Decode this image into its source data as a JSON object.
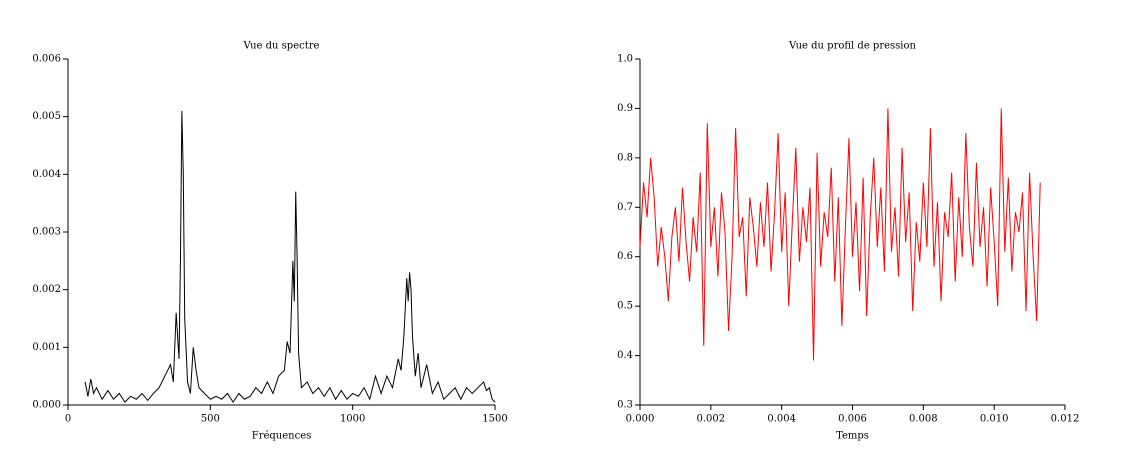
{
  "chart_data": [
    {
      "type": "line",
      "title": "Vue du spectre",
      "xlabel": "Fréquences",
      "color": "#000000",
      "x": [
        60,
        70,
        80,
        90,
        100,
        120,
        140,
        160,
        180,
        200,
        220,
        240,
        260,
        280,
        300,
        320,
        340,
        360,
        370,
        380,
        390,
        395,
        400,
        405,
        410,
        420,
        430,
        440,
        450,
        460,
        480,
        500,
        520,
        540,
        560,
        580,
        600,
        620,
        640,
        660,
        680,
        700,
        720,
        740,
        760,
        770,
        780,
        790,
        795,
        800,
        805,
        810,
        820,
        840,
        860,
        880,
        900,
        920,
        940,
        960,
        980,
        1000,
        1020,
        1040,
        1060,
        1080,
        1100,
        1120,
        1140,
        1160,
        1170,
        1180,
        1190,
        1195,
        1200,
        1205,
        1210,
        1220,
        1230,
        1240,
        1260,
        1280,
        1300,
        1320,
        1340,
        1360,
        1380,
        1400,
        1420,
        1440,
        1460,
        1470,
        1480,
        1490,
        1500
      ],
      "values": [
        0.0004,
        0.00015,
        0.00045,
        0.0002,
        0.0003,
        0.0001,
        0.00025,
        0.0001,
        0.0002,
        5e-05,
        0.00015,
        0.0001,
        0.0002,
        8e-05,
        0.0002,
        0.0003,
        0.0005,
        0.0007,
        0.0004,
        0.0016,
        0.0008,
        0.0025,
        0.0051,
        0.004,
        0.0015,
        0.0004,
        0.0002,
        0.001,
        0.0006,
        0.0003,
        0.0002,
        0.0001,
        0.00015,
        0.0001,
        0.0002,
        5e-05,
        0.0002,
        0.0001,
        0.00015,
        0.0003,
        0.0002,
        0.0004,
        0.0002,
        0.0005,
        0.0006,
        0.0011,
        0.0009,
        0.0025,
        0.0018,
        0.0037,
        0.0025,
        0.0009,
        0.0003,
        0.0004,
        0.0002,
        0.0003,
        0.00015,
        0.0003,
        0.0001,
        0.00025,
        0.0001,
        0.0002,
        0.00015,
        0.0003,
        0.0001,
        0.0005,
        0.0002,
        0.0005,
        0.0003,
        0.0008,
        0.0006,
        0.0012,
        0.0022,
        0.0018,
        0.0023,
        0.002,
        0.0012,
        0.0005,
        0.0009,
        0.0003,
        0.0007,
        0.0002,
        0.0004,
        0.0001,
        0.0002,
        0.0003,
        0.0001,
        0.0003,
        0.0002,
        0.0003,
        0.0004,
        0.00025,
        0.0003,
        0.0001,
        5e-05
      ],
      "xlim": [
        0,
        1500
      ],
      "xticks": [
        0,
        500,
        1000,
        1500
      ],
      "ylim": [
        0,
        0.006
      ],
      "yticks": [
        {
          "value": 0,
          "label": "0.000"
        },
        {
          "value": 0.001,
          "label": "0.001"
        },
        {
          "value": 0.002,
          "label": "0.002"
        },
        {
          "value": 0.003,
          "label": "0.003"
        },
        {
          "value": 0.004,
          "label": "0.004"
        },
        {
          "value": 0.005,
          "label": "0.005"
        },
        {
          "value": 0.006,
          "label": "0.006"
        }
      ]
    },
    {
      "type": "line",
      "title": "Vue du profil de pression",
      "xlabel": "Temps",
      "color": "#ff0000",
      "x": [
        0.0,
        0.0001,
        0.0002,
        0.0003,
        0.0004,
        0.0005,
        0.0006,
        0.0007,
        0.0008,
        0.0009,
        0.001,
        0.0011,
        0.0012,
        0.0013,
        0.0014,
        0.0015,
        0.0016,
        0.0017,
        0.0018,
        0.0019,
        0.002,
        0.0021,
        0.0022,
        0.0023,
        0.0024,
        0.0025,
        0.0026,
        0.0027,
        0.0028,
        0.0029,
        0.003,
        0.0031,
        0.0032,
        0.0033,
        0.0034,
        0.0035,
        0.0036,
        0.0037,
        0.0038,
        0.0039,
        0.004,
        0.0041,
        0.0042,
        0.0043,
        0.0044,
        0.0045,
        0.0046,
        0.0047,
        0.0048,
        0.0049,
        0.005,
        0.0051,
        0.0052,
        0.0053,
        0.0054,
        0.0055,
        0.0056,
        0.0057,
        0.0058,
        0.0059,
        0.006,
        0.0061,
        0.0062,
        0.0063,
        0.0064,
        0.0065,
        0.0066,
        0.0067,
        0.0068,
        0.0069,
        0.007,
        0.0071,
        0.0072,
        0.0073,
        0.0074,
        0.0075,
        0.0076,
        0.0077,
        0.0078,
        0.0079,
        0.008,
        0.0081,
        0.0082,
        0.0083,
        0.0084,
        0.0085,
        0.0086,
        0.0087,
        0.0088,
        0.0089,
        0.009,
        0.0091,
        0.0092,
        0.0093,
        0.0094,
        0.0095,
        0.0096,
        0.0097,
        0.0098,
        0.0099,
        0.01,
        0.0101,
        0.0102,
        0.0103,
        0.0104,
        0.0105,
        0.0106,
        0.0107,
        0.0108,
        0.0109,
        0.011,
        0.0111,
        0.0112,
        0.0113
      ],
      "values": [
        0.62,
        0.75,
        0.68,
        0.8,
        0.72,
        0.58,
        0.66,
        0.6,
        0.51,
        0.64,
        0.7,
        0.59,
        0.74,
        0.63,
        0.55,
        0.68,
        0.61,
        0.77,
        0.42,
        0.87,
        0.62,
        0.7,
        0.56,
        0.73,
        0.65,
        0.45,
        0.6,
        0.86,
        0.64,
        0.68,
        0.52,
        0.72,
        0.66,
        0.58,
        0.71,
        0.62,
        0.75,
        0.57,
        0.69,
        0.85,
        0.61,
        0.73,
        0.5,
        0.67,
        0.82,
        0.59,
        0.7,
        0.63,
        0.74,
        0.39,
        0.81,
        0.58,
        0.69,
        0.64,
        0.78,
        0.55,
        0.72,
        0.46,
        0.66,
        0.84,
        0.6,
        0.71,
        0.53,
        0.76,
        0.48,
        0.68,
        0.8,
        0.62,
        0.74,
        0.57,
        0.9,
        0.61,
        0.7,
        0.56,
        0.82,
        0.63,
        0.73,
        0.49,
        0.67,
        0.59,
        0.75,
        0.62,
        0.86,
        0.58,
        0.71,
        0.51,
        0.69,
        0.64,
        0.77,
        0.55,
        0.72,
        0.6,
        0.85,
        0.66,
        0.58,
        0.79,
        0.62,
        0.7,
        0.54,
        0.74,
        0.63,
        0.5,
        0.9,
        0.61,
        0.76,
        0.57,
        0.69,
        0.65,
        0.73,
        0.49,
        0.77,
        0.6,
        0.47,
        0.75
      ],
      "xlim": [
        0,
        0.012
      ],
      "xticks": [
        {
          "value": 0,
          "label": "0.000"
        },
        {
          "value": 0.002,
          "label": "0.002"
        },
        {
          "value": 0.004,
          "label": "0.004"
        },
        {
          "value": 0.006,
          "label": "0.006"
        },
        {
          "value": 0.008,
          "label": "0.008"
        },
        {
          "value": 0.01,
          "label": "0.010"
        },
        {
          "value": 0.012,
          "label": "0.012"
        }
      ],
      "ylim": [
        0.3,
        1.0
      ],
      "yticks": [
        0.3,
        0.4,
        0.5,
        0.6,
        0.7,
        0.8,
        0.9,
        {
          "value": 1.0,
          "label": "1.0"
        }
      ]
    }
  ]
}
